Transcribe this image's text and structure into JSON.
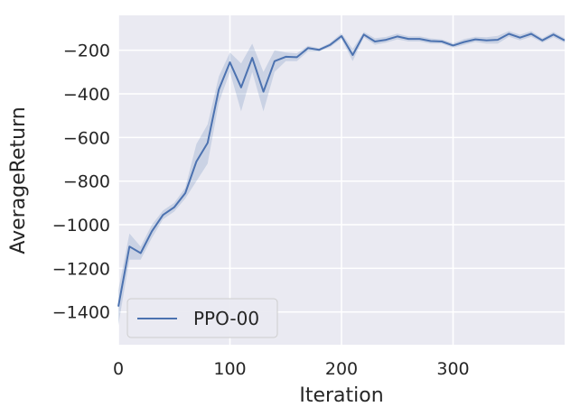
{
  "chart_data": {
    "type": "line",
    "xlabel": "Iteration",
    "ylabel": "AverageReturn",
    "xlim": [
      0,
      400
    ],
    "ylim": [
      -1550,
      -40
    ],
    "x_ticks": [
      0,
      100,
      200,
      300
    ],
    "y_ticks": [
      -200,
      -400,
      -600,
      -800,
      -1000,
      -1200,
      -1400
    ],
    "grid": true,
    "legend_position": "lower-left",
    "colors": {
      "line": "#4c72b0",
      "band": "#4c72b0",
      "background": "#eaeaf2",
      "grid": "#ffffff"
    },
    "series": [
      {
        "name": "PPO-00",
        "x": [
          0,
          10,
          20,
          30,
          40,
          50,
          60,
          70,
          80,
          90,
          100,
          110,
          120,
          130,
          140,
          150,
          160,
          170,
          180,
          190,
          200,
          210,
          220,
          230,
          240,
          250,
          260,
          270,
          280,
          290,
          300,
          310,
          320,
          330,
          340,
          350,
          360,
          370,
          380,
          390,
          400
        ],
        "y": [
          -1375,
          -1100,
          -1130,
          -1030,
          -955,
          -920,
          -855,
          -710,
          -625,
          -380,
          -255,
          -370,
          -235,
          -390,
          -250,
          -230,
          -232,
          -190,
          -198,
          -175,
          -135,
          -222,
          -128,
          -160,
          -152,
          -137,
          -148,
          -148,
          -158,
          -160,
          -178,
          -162,
          -150,
          -155,
          -152,
          -125,
          -142,
          -125,
          -155,
          -128,
          -155
        ],
        "lower": [
          -1460,
          -1160,
          -1160,
          -1060,
          -975,
          -940,
          -880,
          -800,
          -720,
          -440,
          -300,
          -480,
          -300,
          -480,
          -300,
          -250,
          -250,
          -205,
          -205,
          -185,
          -148,
          -250,
          -140,
          -175,
          -165,
          -150,
          -160,
          -160,
          -170,
          -170,
          -188,
          -175,
          -162,
          -170,
          -170,
          -138,
          -155,
          -138,
          -165,
          -140,
          -165
        ],
        "upper": [
          -1300,
          -1040,
          -1100,
          -1000,
          -935,
          -900,
          -830,
          -630,
          -540,
          -320,
          -210,
          -260,
          -170,
          -300,
          -200,
          -210,
          -214,
          -180,
          -191,
          -165,
          -122,
          -194,
          -116,
          -145,
          -139,
          -124,
          -136,
          -136,
          -146,
          -150,
          -168,
          -149,
          -138,
          -140,
          -134,
          -112,
          -129,
          -112,
          -145,
          -116,
          -145
        ]
      }
    ]
  }
}
